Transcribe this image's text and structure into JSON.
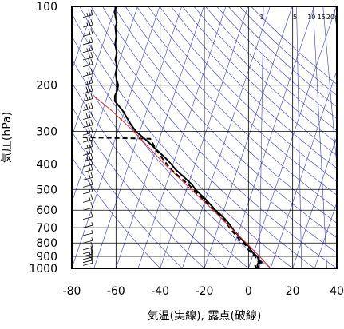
{
  "chart_data": {
    "type": "line",
    "title": "",
    "xlabel": "気温(実線), 露点(破線)",
    "ylabel": "気圧(hPa)",
    "xlim": [
      -80,
      40
    ],
    "ylim": [
      1000,
      100
    ],
    "y_scale": "log",
    "x_ticks": [
      -80,
      -60,
      -40,
      -20,
      0,
      20,
      40
    ],
    "x_tick_labels": [
      "-80",
      "-60",
      "-40",
      "-20",
      "0",
      "20",
      "40"
    ],
    "y_ticks": [
      100,
      200,
      300,
      400,
      500,
      600,
      700,
      800,
      900,
      1000
    ],
    "y_tick_labels": [
      "100",
      "200",
      "300",
      "400",
      "500",
      "600",
      "700",
      "800",
      "900",
      "1000"
    ],
    "mixing_ratio_labels": [
      "1",
      "5",
      "10",
      "15",
      "20g"
    ],
    "mixing_ratio_label_temps": [
      -33,
      -18,
      -10.5,
      -6,
      -1
    ],
    "grid": true,
    "colors": {
      "temperature": "#000000",
      "dewpoint": "#000000",
      "reference": "#e0302a",
      "adiabats": "#3a3acd",
      "grid": "#000000",
      "wind_barbs": "#000000"
    },
    "series": [
      {
        "key": "temperature",
        "style": "solid",
        "p": [
          1000,
          990,
          975,
          960,
          950,
          925,
          900,
          880,
          850,
          820,
          800,
          780,
          750,
          720,
          700,
          680,
          650,
          620,
          600,
          580,
          550,
          520,
          500,
          480,
          450,
          420,
          400,
          380,
          350,
          320,
          300,
          280,
          250,
          230,
          220,
          210,
          200,
          190,
          180,
          170,
          160,
          150,
          140,
          130,
          120,
          115,
          110,
          105,
          100
        ],
        "t": [
          5.0,
          4.5,
          4.0,
          4.2,
          6.0,
          4.5,
          4.0,
          2.5,
          1.0,
          0.0,
          -1.5,
          -2.8,
          -4.5,
          -6.5,
          -7.5,
          -8.5,
          -10.5,
          -13.0,
          -15.0,
          -16.5,
          -19.0,
          -22.0,
          -24.0,
          -25.5,
          -29.0,
          -33.0,
          -35.0,
          -37.5,
          -42.0,
          -47.0,
          -51.0,
          -53.5,
          -57.0,
          -60.5,
          -60.5,
          -59.5,
          -59.0,
          -59.8,
          -60.2,
          -59.5,
          -60.3,
          -59.6,
          -60.4,
          -59.9,
          -60.3,
          -59.6,
          -60.2,
          -60.6,
          -60.0
        ]
      },
      {
        "key": "dewpoint",
        "style": "dashed",
        "p": [
          1000,
          990,
          975,
          960,
          950,
          925,
          900,
          880,
          850,
          820,
          800,
          780,
          750,
          720,
          700,
          680,
          650,
          620,
          600,
          580,
          550,
          520,
          500,
          480,
          450,
          420,
          400,
          380,
          350,
          320,
          318,
          316
        ],
        "t": [
          4.5,
          3.5,
          3.0,
          3.5,
          5.0,
          3.5,
          3.0,
          1.5,
          0.0,
          -1.0,
          -2.5,
          -4.0,
          -5.5,
          -7.5,
          -8.5,
          -9.5,
          -11.5,
          -14.0,
          -16.0,
          -17.5,
          -20.0,
          -23.0,
          -25.0,
          -27.0,
          -31.0,
          -35.0,
          -37.0,
          -39.0,
          -42.0,
          -44.5,
          -60.0,
          -75.0
        ]
      },
      {
        "key": "reference",
        "style": "solid",
        "p": [
          1000,
          900,
          800,
          700,
          600,
          500,
          400,
          300,
          250,
          220
        ],
        "t": [
          10.0,
          5.0,
          -1.0,
          -8.0,
          -16.0,
          -26.0,
          -38.0,
          -52.0,
          -62.0,
          -70.0
        ]
      }
    ],
    "wind_barbs": [
      {
        "p": 100,
        "speed": 15
      },
      {
        "p": 110,
        "speed": 25
      },
      {
        "p": 120,
        "speed": 25
      },
      {
        "p": 130,
        "speed": 20
      },
      {
        "p": 140,
        "speed": 20
      },
      {
        "p": 150,
        "speed": 25
      },
      {
        "p": 160,
        "speed": 20
      },
      {
        "p": 170,
        "speed": 20
      },
      {
        "p": 185,
        "speed": 25
      },
      {
        "p": 200,
        "speed": 25
      },
      {
        "p": 215,
        "speed": 30
      },
      {
        "p": 230,
        "speed": 30
      },
      {
        "p": 250,
        "speed": 35
      },
      {
        "p": 270,
        "speed": 30
      },
      {
        "p": 290,
        "speed": 30
      },
      {
        "p": 310,
        "speed": 25
      },
      {
        "p": 330,
        "speed": 25
      },
      {
        "p": 350,
        "speed": 25
      },
      {
        "p": 370,
        "speed": 25
      },
      {
        "p": 390,
        "speed": 25
      },
      {
        "p": 410,
        "speed": 20
      },
      {
        "p": 430,
        "speed": 20
      },
      {
        "p": 460,
        "speed": 20
      },
      {
        "p": 490,
        "speed": 20
      },
      {
        "p": 520,
        "speed": 15
      },
      {
        "p": 560,
        "speed": 15
      },
      {
        "p": 600,
        "speed": 10
      },
      {
        "p": 650,
        "speed": 10
      },
      {
        "p": 700,
        "speed": 5
      },
      {
        "p": 750,
        "speed": 5
      },
      {
        "p": 800,
        "speed": 5
      },
      {
        "p": 850,
        "speed": 10
      },
      {
        "p": 880,
        "speed": 10
      },
      {
        "p": 900,
        "speed": 15
      },
      {
        "p": 925,
        "speed": 15
      },
      {
        "p": 950,
        "speed": 10
      },
      {
        "p": 975,
        "speed": 10
      }
    ]
  }
}
